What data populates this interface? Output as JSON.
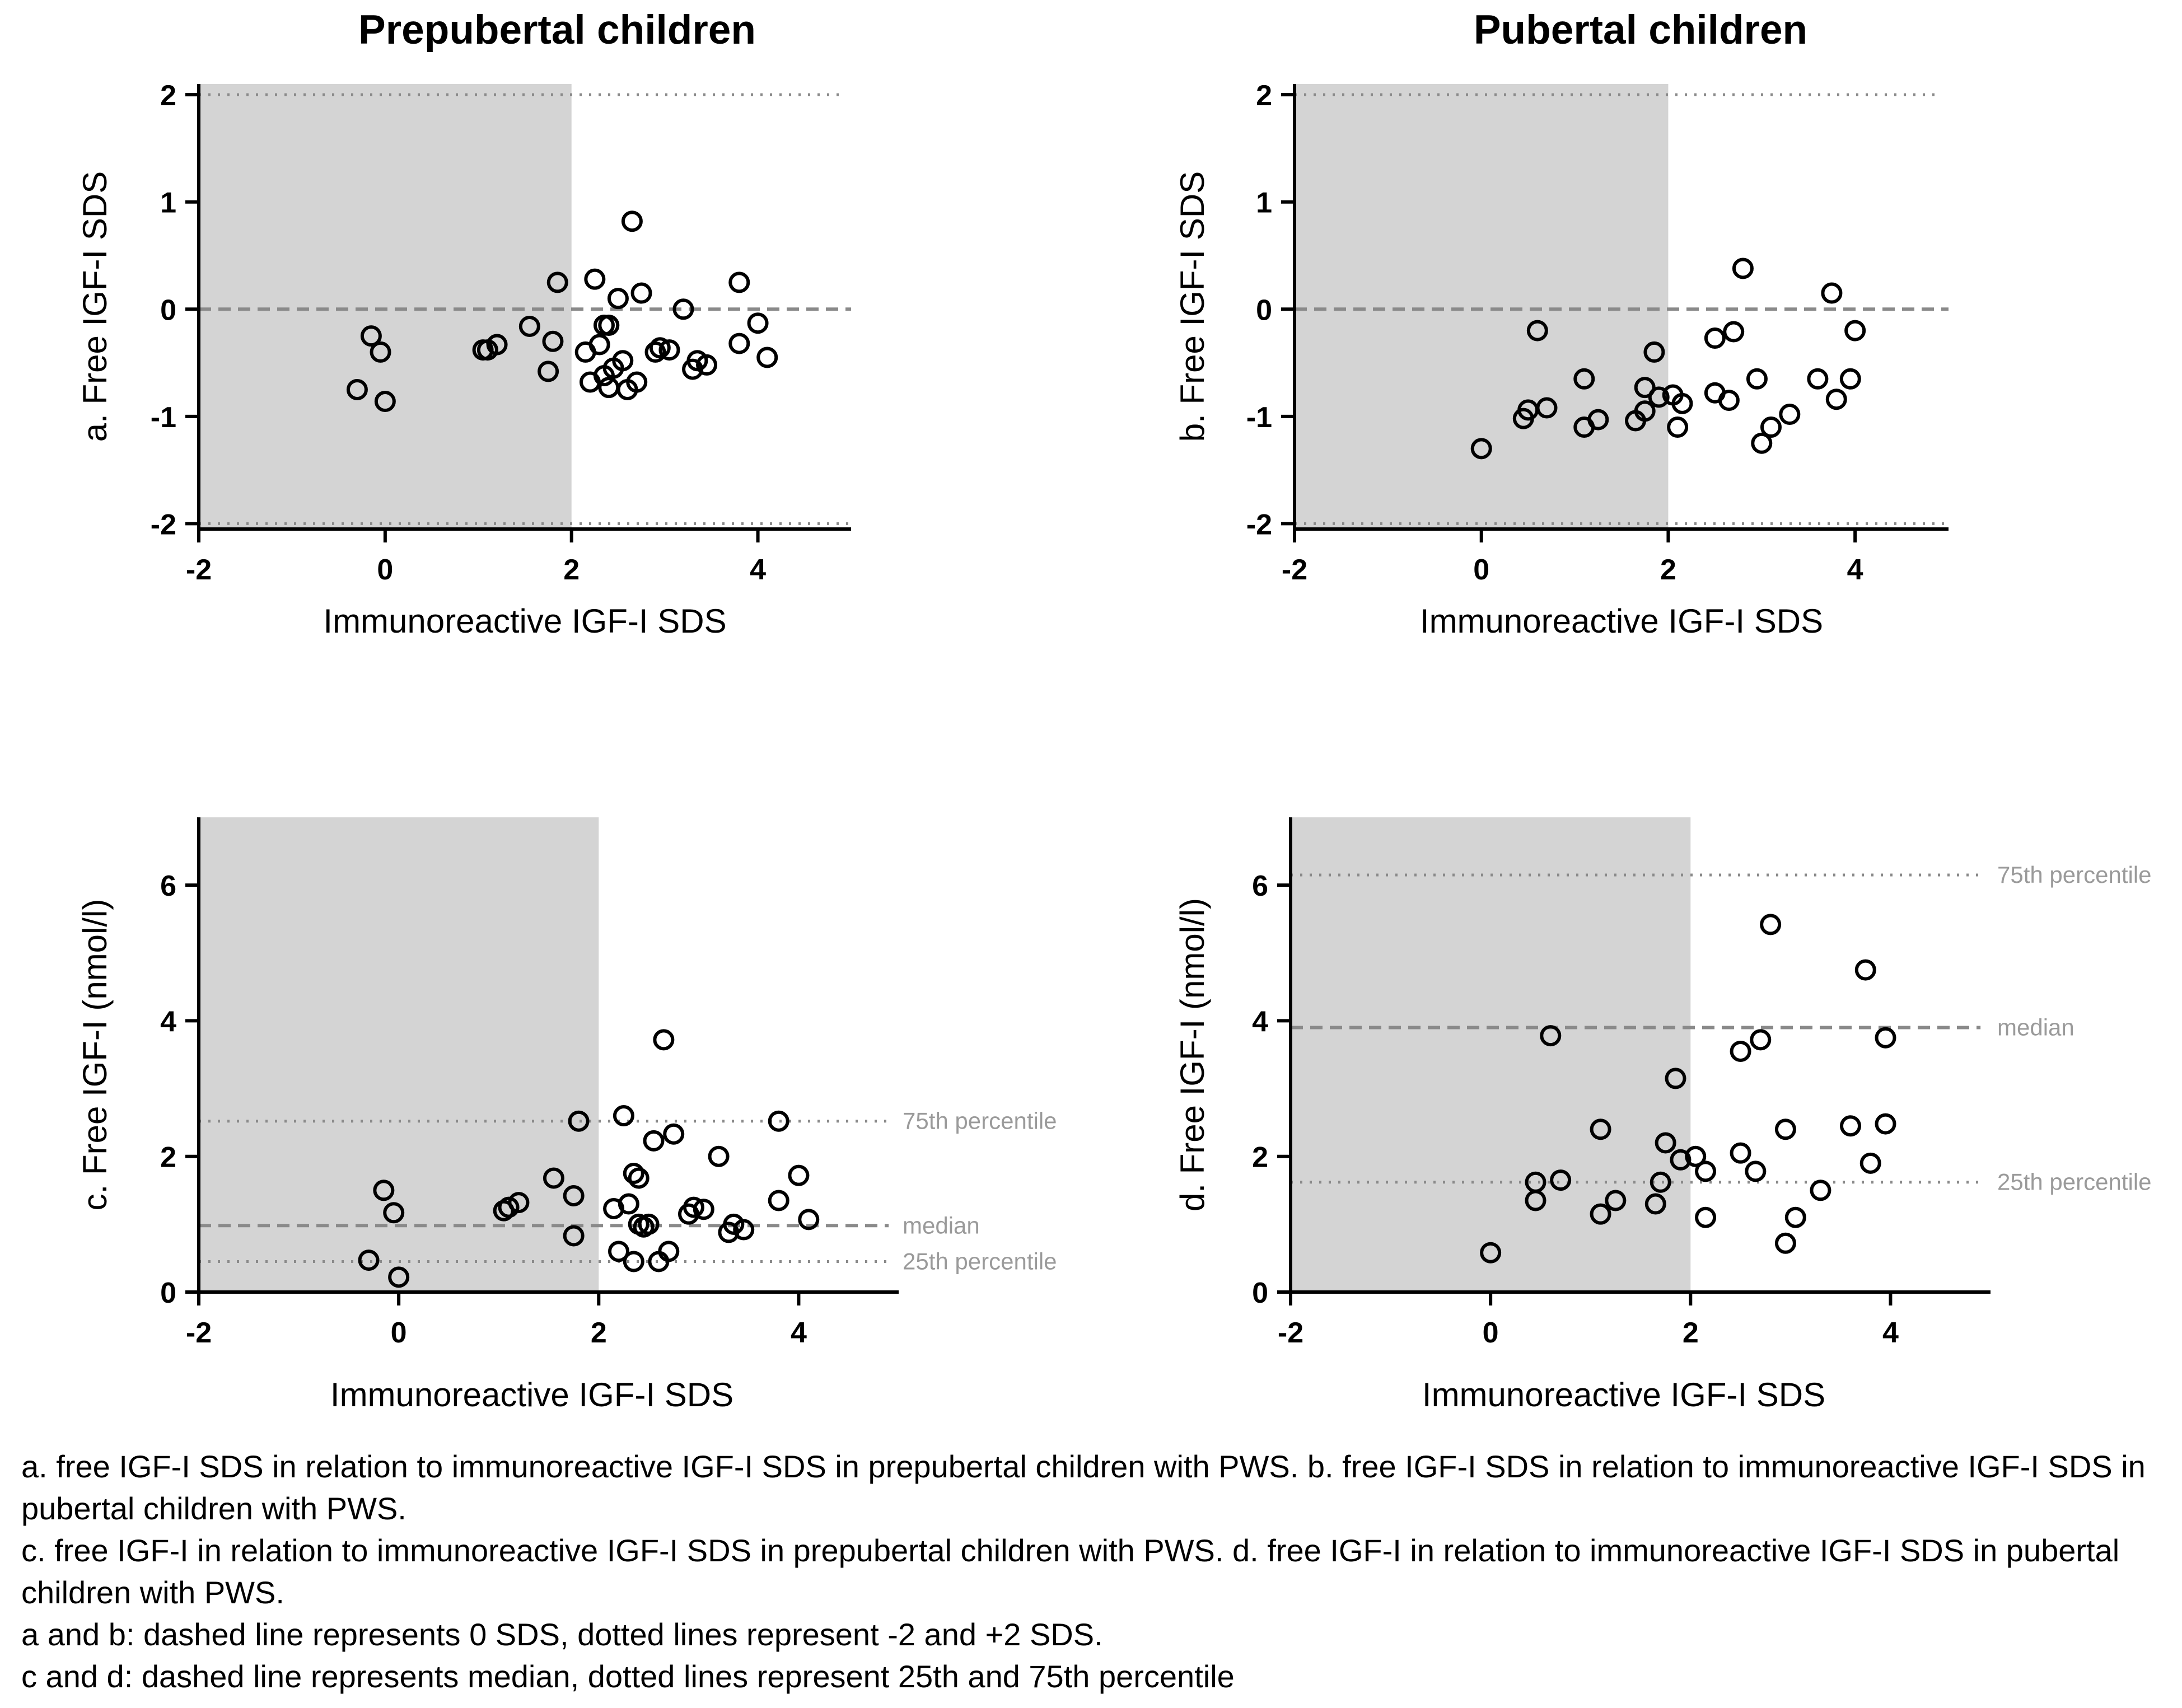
{
  "titles": {
    "left": "Prepubertal children",
    "right": "Pubertal children"
  },
  "colors": {
    "shade": "#d4d4d4",
    "refline": "#8a8a8a",
    "axis": "#000000",
    "marker": "#000000",
    "annotation": "#9a9a9a"
  },
  "chart_data": [
    {
      "id": "a",
      "type": "scatter",
      "title": "Prepubertal children",
      "xlabel": "Immunoreactive IGF-I SDS",
      "ylabel": "a. Free IGF-I SDS",
      "xlim": [
        -2,
        5
      ],
      "ylim": [
        -2.05,
        2.1
      ],
      "xticks": [
        -2,
        0,
        2,
        4
      ],
      "yticks": [
        -2,
        -1,
        0,
        1,
        2
      ],
      "shaded_x": [
        -2,
        2
      ],
      "reference_lines": [
        {
          "y": 2,
          "style": "dotted",
          "x_end": 4.9,
          "label": ""
        },
        {
          "y": 0,
          "style": "dashed",
          "x_end": 5,
          "label": ""
        },
        {
          "y": -2,
          "style": "dotted",
          "x_end": 5,
          "label": ""
        }
      ],
      "x": [
        -0.3,
        -0.15,
        -0.05,
        0,
        1.05,
        1.1,
        1.2,
        1.55,
        1.75,
        1.8,
        1.85,
        2.15,
        2.2,
        2.25,
        2.3,
        2.35,
        2.35,
        2.4,
        2.4,
        2.45,
        2.5,
        2.55,
        2.6,
        2.65,
        2.7,
        2.75,
        2.9,
        2.95,
        3.05,
        3.2,
        3.3,
        3.35,
        3.45,
        3.8,
        3.8,
        4.0,
        4.1
      ],
      "y": [
        -0.75,
        -0.25,
        -0.4,
        -0.86,
        -0.38,
        -0.38,
        -0.33,
        -0.16,
        -0.58,
        -0.3,
        0.25,
        -0.4,
        -0.68,
        0.28,
        -0.33,
        -0.15,
        -0.62,
        -0.73,
        -0.15,
        -0.55,
        0.1,
        -0.48,
        -0.75,
        0.82,
        -0.68,
        0.15,
        -0.4,
        -0.36,
        -0.38,
        0.0,
        -0.56,
        -0.48,
        -0.52,
        0.25,
        -0.32,
        -0.13,
        -0.45
      ]
    },
    {
      "id": "b",
      "type": "scatter",
      "title": "Pubertal children",
      "xlabel": "Immunoreactive IGF-I SDS",
      "ylabel": "b. Free IGF-I SDS",
      "xlim": [
        -2,
        5
      ],
      "ylim": [
        -2.05,
        2.1
      ],
      "xticks": [
        -2,
        0,
        2,
        4
      ],
      "yticks": [
        -2,
        -1,
        0,
        1,
        2
      ],
      "shaded_x": [
        -2,
        2
      ],
      "reference_lines": [
        {
          "y": 2,
          "style": "dotted",
          "x_end": 4.9,
          "label": ""
        },
        {
          "y": 0,
          "style": "dashed",
          "x_end": 5,
          "label": ""
        },
        {
          "y": -2,
          "style": "dotted",
          "x_end": 5,
          "label": ""
        }
      ],
      "x": [
        0,
        0.45,
        0.5,
        0.6,
        0.7,
        1.1,
        1.1,
        1.25,
        1.65,
        1.75,
        1.75,
        1.85,
        1.9,
        2.05,
        2.1,
        2.15,
        2.5,
        2.5,
        2.65,
        2.7,
        2.8,
        2.95,
        3.0,
        3.1,
        3.3,
        3.6,
        3.75,
        3.8,
        3.95,
        4.0
      ],
      "y": [
        -1.3,
        -1.02,
        -0.94,
        -0.2,
        -0.92,
        -0.65,
        -1.1,
        -1.03,
        -1.04,
        -0.73,
        -0.95,
        -0.4,
        -0.82,
        -0.8,
        -1.1,
        -0.88,
        -0.27,
        -0.78,
        -0.85,
        -0.21,
        0.38,
        -0.65,
        -1.25,
        -1.1,
        -0.98,
        -0.65,
        0.15,
        -0.84,
        -0.65,
        -0.2
      ]
    },
    {
      "id": "c",
      "type": "scatter",
      "title": "",
      "xlabel": "Immunoreactive IGF-I SDS",
      "ylabel": "c. Free IGF-I (nmol/l)",
      "xlim": [
        -2,
        5
      ],
      "ylim": [
        0,
        7
      ],
      "xticks": [
        -2,
        0,
        2,
        4
      ],
      "yticks": [
        0,
        2,
        4,
        6
      ],
      "shaded_x": [
        -2,
        2
      ],
      "reference_lines": [
        {
          "y": 2.52,
          "style": "dotted",
          "x_end": 4.9,
          "label": "75th percentile"
        },
        {
          "y": 0.98,
          "style": "dashed",
          "x_end": 4.9,
          "label": "median"
        },
        {
          "y": 0.45,
          "style": "dotted",
          "x_end": 4.9,
          "label": "25th percentile"
        }
      ],
      "x": [
        -0.3,
        -0.15,
        -0.05,
        0,
        1.05,
        1.1,
        1.2,
        1.55,
        1.75,
        1.75,
        1.8,
        2.15,
        2.2,
        2.25,
        2.3,
        2.35,
        2.35,
        2.4,
        2.4,
        2.45,
        2.5,
        2.55,
        2.6,
        2.65,
        2.7,
        2.75,
        2.9,
        2.95,
        3.05,
        3.2,
        3.3,
        3.35,
        3.45,
        3.8,
        3.8,
        4.0,
        4.1
      ],
      "y": [
        0.47,
        1.5,
        1.17,
        0.22,
        1.2,
        1.25,
        1.32,
        1.68,
        0.83,
        1.42,
        2.52,
        1.23,
        0.6,
        2.6,
        1.3,
        1.75,
        0.45,
        1.0,
        1.68,
        0.96,
        1.0,
        2.23,
        0.45,
        3.72,
        0.6,
        2.33,
        1.15,
        1.25,
        1.22,
        2.0,
        0.88,
        1.0,
        0.92,
        2.52,
        1.35,
        1.72,
        1.07
      ]
    },
    {
      "id": "d",
      "type": "scatter",
      "title": "",
      "xlabel": "Immunoreactive IGF-I SDS",
      "ylabel": "d. Free IGF-I (nmol/l)",
      "xlim": [
        -2,
        5
      ],
      "ylim": [
        0,
        7
      ],
      "xticks": [
        -2,
        0,
        2,
        4
      ],
      "yticks": [
        0,
        2,
        4,
        6
      ],
      "shaded_x": [
        -2,
        2
      ],
      "reference_lines": [
        {
          "y": 6.15,
          "style": "dotted",
          "x_end": 4.9,
          "label": "75th percentile"
        },
        {
          "y": 3.9,
          "style": "dashed",
          "x_end": 4.9,
          "label": "median"
        },
        {
          "y": 1.62,
          "style": "dotted",
          "x_end": 4.9,
          "label": "25th percentile"
        }
      ],
      "x": [
        0,
        0.45,
        0.45,
        0.6,
        0.7,
        1.1,
        1.1,
        1.25,
        1.65,
        1.7,
        1.75,
        1.85,
        1.9,
        2.05,
        2.15,
        2.15,
        2.5,
        2.5,
        2.65,
        2.7,
        2.8,
        2.95,
        2.95,
        3.05,
        3.3,
        3.6,
        3.75,
        3.8,
        3.95,
        3.95
      ],
      "y": [
        0.58,
        1.62,
        1.35,
        3.78,
        1.65,
        2.4,
        1.15,
        1.35,
        1.3,
        1.62,
        2.2,
        3.15,
        1.95,
        2.0,
        1.78,
        1.1,
        2.05,
        3.55,
        1.78,
        3.72,
        5.42,
        0.72,
        2.4,
        1.1,
        1.5,
        2.45,
        4.75,
        1.9,
        3.75,
        2.48
      ]
    }
  ],
  "caption": [
    "a. free IGF-I SDS in relation to immunoreactive IGF-I SDS in prepubertal children with  PWS. b. free IGF-I SDS in relation to immunoreactive IGF-I SDS in pubertal children with  PWS.",
    "c. free IGF-I in relation to immunoreactive IGF-I SDS in prepubertal children with  PWS. d. free IGF-I in relation to immunoreactive IGF-I SDS in pubertal children with PWS.",
    "a and b: dashed line represents 0 SDS, dotted lines represent -2 and +2 SDS.",
    "c and d: dashed line represents median, dotted lines represent 25th and 75th percentile"
  ]
}
